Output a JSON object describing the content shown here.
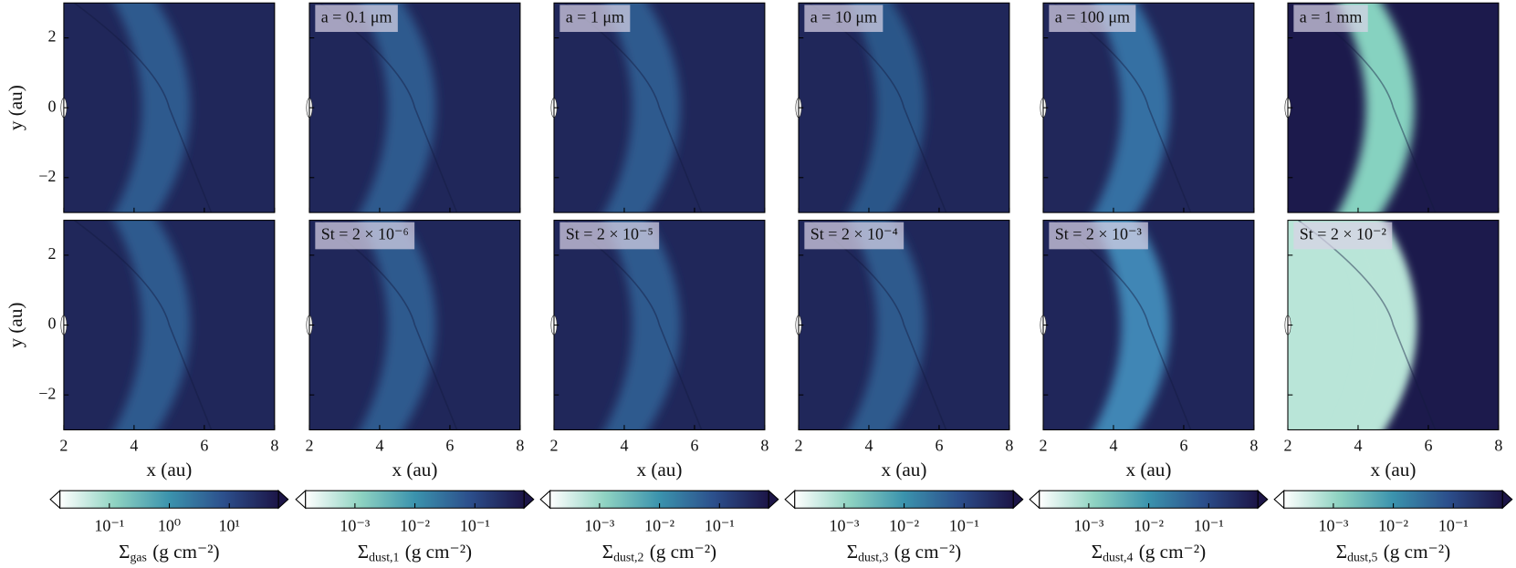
{
  "chart_data": [
    {
      "type": "heatmap",
      "xlim": [
        2,
        8
      ],
      "ylim": [
        -3,
        3
      ],
      "xticks": [
        2,
        4,
        6,
        8
      ],
      "yticks": [
        {
          "value": -2,
          "label": "−2"
        },
        0,
        2
      ],
      "show_xticklabels": false,
      "show_yticklabels": true,
      "ylabel": "y (au)",
      "background": "#20275a",
      "band_color": "#2e5a8e"
    },
    {
      "type": "heatmap",
      "xlim": [
        2,
        8
      ],
      "ylim": [
        -3,
        3
      ],
      "xticks": [
        2,
        4,
        6,
        8
      ],
      "yticks": [
        {
          "value": -2,
          "label": "−2"
        },
        0,
        2
      ],
      "show_xticklabels": false,
      "show_yticklabels": false,
      "annotation": "a = 0.1 μm",
      "background": "#20275a",
      "band_color": "#2e5a8e"
    },
    {
      "type": "heatmap",
      "xlim": [
        2,
        8
      ],
      "ylim": [
        -3,
        3
      ],
      "xticks": [
        2,
        4,
        6,
        8
      ],
      "yticks": [
        {
          "value": -2,
          "label": "−2"
        },
        0,
        2
      ],
      "show_xticklabels": false,
      "show_yticklabels": false,
      "annotation": "a = 1 μm",
      "background": "#20275a",
      "band_color": "#2e5a8e"
    },
    {
      "type": "heatmap",
      "xlim": [
        2,
        8
      ],
      "ylim": [
        -3,
        3
      ],
      "xticks": [
        2,
        4,
        6,
        8
      ],
      "yticks": [
        {
          "value": -2,
          "label": "−2"
        },
        0,
        2
      ],
      "show_xticklabels": false,
      "show_yticklabels": false,
      "annotation": "a = 10 μm",
      "background": "#20275a",
      "band_color": "#2c5689"
    },
    {
      "type": "heatmap",
      "xlim": [
        2,
        8
      ],
      "ylim": [
        -3,
        3
      ],
      "xticks": [
        2,
        4,
        6,
        8
      ],
      "yticks": [
        {
          "value": -2,
          "label": "−2"
        },
        0,
        2
      ],
      "show_xticklabels": false,
      "show_yticklabels": false,
      "annotation": "a = 100 μm",
      "background": "#21275a",
      "band_color": "#3670a3"
    },
    {
      "type": "heatmap",
      "xlim": [
        2,
        8
      ],
      "ylim": [
        -3,
        3
      ],
      "xticks": [
        2,
        4,
        6,
        8
      ],
      "yticks": [
        {
          "value": -2,
          "label": "−2"
        },
        0,
        2
      ],
      "show_xticklabels": false,
      "show_yticklabels": false,
      "annotation": "a = 1 mm",
      "background": "#1c1a4c",
      "band_color": "#86d2c0"
    },
    {
      "type": "heatmap",
      "xlim": [
        2,
        8
      ],
      "ylim": [
        -3,
        3
      ],
      "xticks": [
        2,
        4,
        6,
        8
      ],
      "yticks": [
        {
          "value": -2,
          "label": "−2"
        },
        0,
        2
      ],
      "show_xticklabels": true,
      "show_yticklabels": true,
      "xlabel": "x (au)",
      "ylabel": "y (au)",
      "background": "#20275a",
      "band_color": "#2e5a8e"
    },
    {
      "type": "heatmap",
      "xlim": [
        2,
        8
      ],
      "ylim": [
        -3,
        3
      ],
      "xticks": [
        2,
        4,
        6,
        8
      ],
      "yticks": [
        {
          "value": -2,
          "label": "−2"
        },
        0,
        2
      ],
      "show_xticklabels": true,
      "show_yticklabels": false,
      "xlabel": "x (au)",
      "annotation": "St = 2 × 10⁻⁶",
      "background": "#20275a",
      "band_color": "#2e5a8e"
    },
    {
      "type": "heatmap",
      "xlim": [
        2,
        8
      ],
      "ylim": [
        -3,
        3
      ],
      "xticks": [
        2,
        4,
        6,
        8
      ],
      "yticks": [
        {
          "value": -2,
          "label": "−2"
        },
        0,
        2
      ],
      "show_xticklabels": true,
      "show_yticklabels": false,
      "xlabel": "x (au)",
      "annotation": "St = 2 × 10⁻⁵",
      "background": "#20275a",
      "band_color": "#2e5a8e"
    },
    {
      "type": "heatmap",
      "xlim": [
        2,
        8
      ],
      "ylim": [
        -3,
        3
      ],
      "xticks": [
        2,
        4,
        6,
        8
      ],
      "yticks": [
        {
          "value": -2,
          "label": "−2"
        },
        0,
        2
      ],
      "show_xticklabels": true,
      "show_yticklabels": false,
      "xlabel": "x (au)",
      "annotation": "St = 2 × 10⁻⁴",
      "background": "#20275a",
      "band_color": "#2d5a8d"
    },
    {
      "type": "heatmap",
      "xlim": [
        2,
        8
      ],
      "ylim": [
        -3,
        3
      ],
      "xticks": [
        2,
        4,
        6,
        8
      ],
      "yticks": [
        {
          "value": -2,
          "label": "−2"
        },
        0,
        2
      ],
      "show_xticklabels": true,
      "show_yticklabels": false,
      "xlabel": "x (au)",
      "annotation": "St = 2 × 10⁻³",
      "background": "#20265a",
      "band_color": "#3f86b5"
    },
    {
      "type": "heatmap",
      "xlim": [
        2,
        8
      ],
      "ylim": [
        -3,
        3
      ],
      "xticks": [
        2,
        4,
        6,
        8
      ],
      "yticks": [
        {
          "value": -2,
          "label": "−2"
        },
        0,
        2
      ],
      "show_xticklabels": true,
      "show_yticklabels": false,
      "xlabel": "x (au)",
      "annotation": "St = 2 × 10⁻²",
      "background": "#1c1a4c",
      "band_color": "#b9e5d8",
      "fill_left": true
    },
    {
      "type": "colorbar",
      "log_scale": true,
      "clim": [
        0.015,
        66
      ],
      "ticks": [
        {
          "value": 0.1,
          "label": "10⁻¹"
        },
        {
          "value": 1,
          "label": "10⁰"
        },
        {
          "value": 10,
          "label": "10¹"
        }
      ],
      "label_symbol": "Σ",
      "label_sub": "gas",
      "label_unit": "(g cm⁻²)",
      "colors": [
        "#ffffff",
        "#8fd3c2",
        "#3b93ad",
        "#2c4f8c",
        "#1c1547"
      ],
      "extend": "both"
    },
    {
      "type": "colorbar",
      "log_scale": true,
      "clim": [
        0.00015,
        0.66
      ],
      "ticks": [
        {
          "value": 0.001,
          "label": "10⁻³"
        },
        {
          "value": 0.01,
          "label": "10⁻²"
        },
        {
          "value": 0.1,
          "label": "10⁻¹"
        }
      ],
      "label_symbol": "Σ",
      "label_sub": "dust,1",
      "label_unit": "(g cm⁻²)",
      "colors": [
        "#ffffff",
        "#8fd3c2",
        "#3b93ad",
        "#2c4f8c",
        "#1c1547"
      ],
      "extend": "both"
    },
    {
      "type": "colorbar",
      "log_scale": true,
      "clim": [
        0.00015,
        0.66
      ],
      "ticks": [
        {
          "value": 0.001,
          "label": "10⁻³"
        },
        {
          "value": 0.01,
          "label": "10⁻²"
        },
        {
          "value": 0.1,
          "label": "10⁻¹"
        }
      ],
      "label_symbol": "Σ",
      "label_sub": "dust,2",
      "label_unit": "(g cm⁻²)",
      "colors": [
        "#ffffff",
        "#8fd3c2",
        "#3b93ad",
        "#2c4f8c",
        "#1c1547"
      ],
      "extend": "both"
    },
    {
      "type": "colorbar",
      "log_scale": true,
      "clim": [
        0.00015,
        0.66
      ],
      "ticks": [
        {
          "value": 0.001,
          "label": "10⁻³"
        },
        {
          "value": 0.01,
          "label": "10⁻²"
        },
        {
          "value": 0.1,
          "label": "10⁻¹"
        }
      ],
      "label_symbol": "Σ",
      "label_sub": "dust,3",
      "label_unit": "(g cm⁻²)",
      "colors": [
        "#ffffff",
        "#8fd3c2",
        "#3b93ad",
        "#2c4f8c",
        "#1c1547"
      ],
      "extend": "both"
    },
    {
      "type": "colorbar",
      "log_scale": true,
      "clim": [
        0.00015,
        0.66
      ],
      "ticks": [
        {
          "value": 0.001,
          "label": "10⁻³"
        },
        {
          "value": 0.01,
          "label": "10⁻²"
        },
        {
          "value": 0.1,
          "label": "10⁻¹"
        }
      ],
      "label_symbol": "Σ",
      "label_sub": "dust,4",
      "label_unit": "(g cm⁻²)",
      "colors": [
        "#ffffff",
        "#8fd3c2",
        "#3b93ad",
        "#2c4f8c",
        "#1c1547"
      ],
      "extend": "both"
    },
    {
      "type": "colorbar",
      "log_scale": true,
      "clim": [
        0.00015,
        0.66
      ],
      "ticks": [
        {
          "value": 0.001,
          "label": "10⁻³"
        },
        {
          "value": 0.01,
          "label": "10⁻²"
        },
        {
          "value": 0.1,
          "label": "10⁻¹"
        }
      ],
      "label_symbol": "Σ",
      "label_sub": "dust,5",
      "label_unit": "(g cm⁻²)",
      "colors": [
        "#ffffff",
        "#8fd3c2",
        "#3b93ad",
        "#2c4f8c",
        "#1c1547"
      ],
      "extend": "both"
    }
  ]
}
